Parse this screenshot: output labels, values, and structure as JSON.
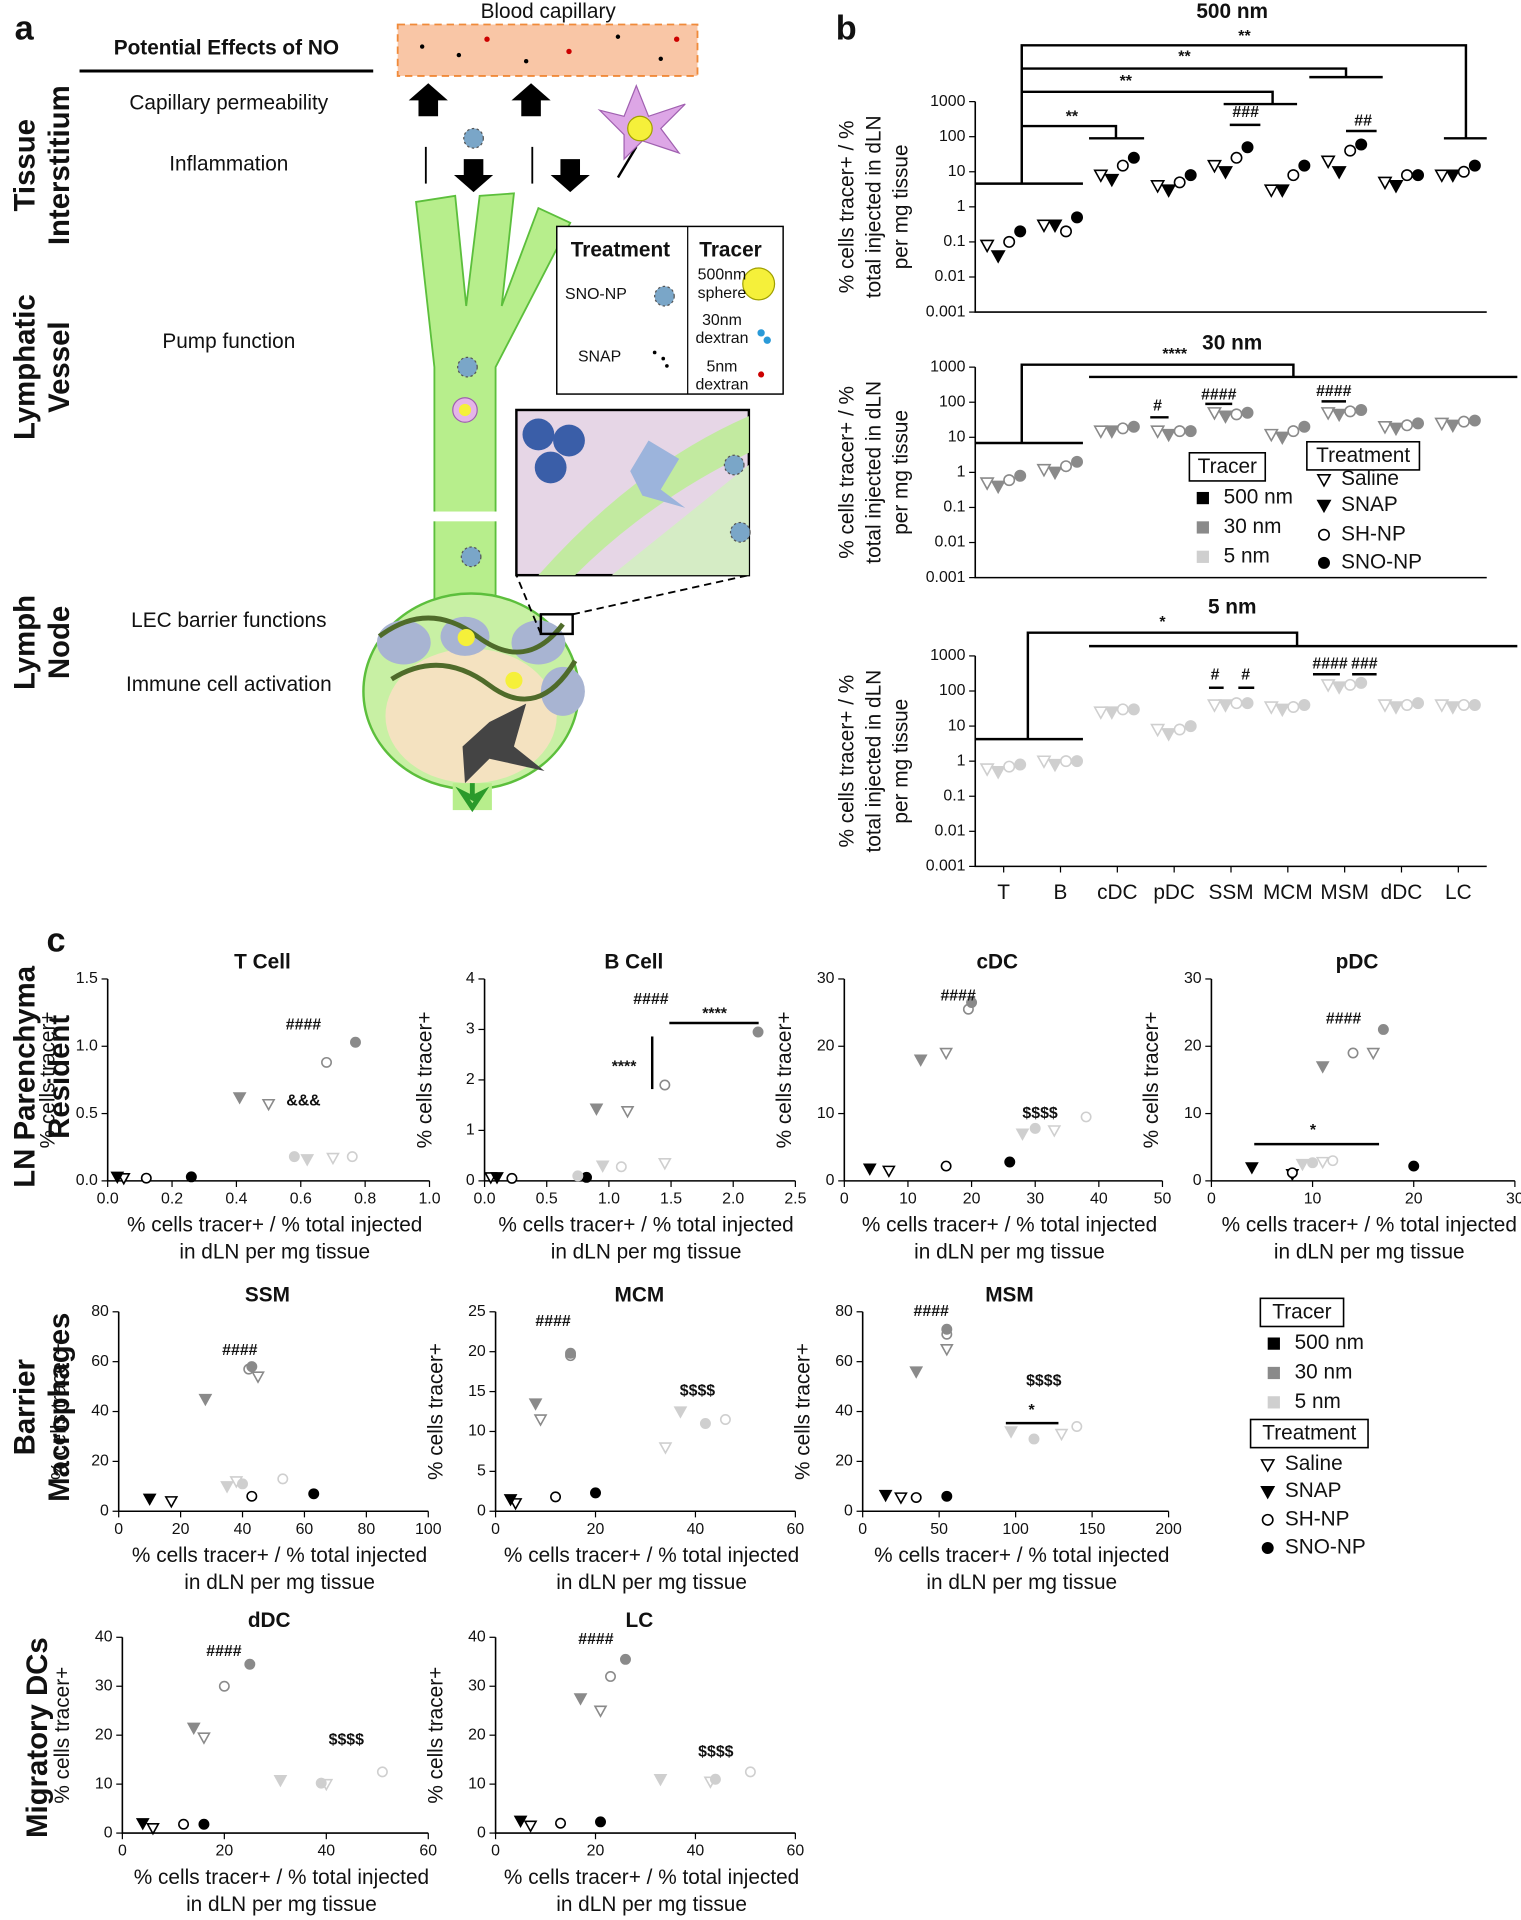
{
  "panel_labels": [
    "a",
    "b",
    "c"
  ],
  "diagram": {
    "title": "Potential Effects of NO",
    "capillary": "Blood capillary",
    "regions": [
      {
        "label": [
          "Tissue",
          "Interstitium"
        ],
        "effects": [
          "Capillary permeability",
          "Inflammation"
        ]
      },
      {
        "label": [
          "Lymphatic",
          "Vessel"
        ],
        "effects": [
          "Pump function"
        ]
      },
      {
        "label": [
          "Lymph",
          "Node"
        ],
        "effects": [
          "LEC barrier functions",
          "Immune cell activation"
        ]
      }
    ],
    "key": {
      "treatment": "Treatment",
      "tracer": "Tracer",
      "treatments": [
        "SNO-NP",
        "SNAP"
      ],
      "tracers": [
        [
          "500nm",
          "sphere"
        ],
        [
          "30nm",
          "dextran"
        ],
        [
          "5nm",
          "dextran"
        ]
      ]
    }
  },
  "legend": {
    "tracer_title": "Tracer",
    "tracers": [
      {
        "name": "500 nm",
        "color": "#000000"
      },
      {
        "name": "30 nm",
        "color": "#8a8a8a"
      },
      {
        "name": "5 nm",
        "color": "#cfcfcf"
      }
    ],
    "treatment_title": "Treatment",
    "treatments": [
      {
        "name": "Saline",
        "marker": "open-triangle"
      },
      {
        "name": "SNAP",
        "marker": "filled-triangle"
      },
      {
        "name": "SH-NP",
        "marker": "open-circle"
      },
      {
        "name": "SNO-NP",
        "marker": "filled-circle"
      }
    ]
  },
  "row_labels": [
    [
      "LN Parenchyma",
      "Resident"
    ],
    [
      "Barrier",
      "Macrophages"
    ],
    [
      "Migratory DCs"
    ]
  ],
  "chart_data": [
    {
      "type": "strip",
      "title": "500 nm",
      "ylabel": [
        "% cells tracer+ / %",
        "total injected in dLN",
        "per mg tissue"
      ],
      "log": true,
      "color": "#000000",
      "ylim": [
        0.001,
        1000
      ],
      "yticks": [
        0.001,
        0.01,
        0.1,
        1,
        10,
        100,
        1000
      ],
      "series": [
        {
          "values": [
            0.08,
            0.3,
            8,
            4,
            15,
            3,
            20,
            5,
            8
          ]
        },
        {
          "values": [
            0.04,
            0.3,
            6,
            3,
            10,
            3,
            10,
            4,
            8
          ]
        },
        {
          "values": [
            0.1,
            0.2,
            15,
            5,
            25,
            8,
            40,
            8,
            10
          ]
        },
        {
          "values": [
            0.2,
            0.5,
            25,
            8,
            50,
            15,
            60,
            8,
            15
          ]
        }
      ],
      "annotations": [
        "**",
        "**",
        "**",
        "**",
        "###",
        "##"
      ]
    },
    {
      "type": "strip",
      "title": "30 nm",
      "ylabel": [
        "% cells tracer+ / %",
        "total injected in dLN",
        "per mg tissue"
      ],
      "log": true,
      "color": "#8a8a8a",
      "ylim": [
        0.001,
        1000
      ],
      "yticks": [
        0.001,
        0.01,
        0.1,
        1,
        10,
        100,
        1000
      ],
      "series": [
        {
          "values": [
            0.5,
            1.2,
            15,
            15,
            50,
            12,
            50,
            20,
            25
          ]
        },
        {
          "values": [
            0.4,
            1,
            15,
            12,
            40,
            10,
            45,
            18,
            22
          ]
        },
        {
          "values": [
            0.6,
            1.5,
            18,
            15,
            45,
            15,
            55,
            22,
            28
          ]
        },
        {
          "values": [
            0.8,
            2,
            20,
            15,
            50,
            20,
            60,
            25,
            30
          ]
        }
      ],
      "annotations": [
        "****",
        "#",
        "####",
        "####"
      ]
    },
    {
      "type": "strip",
      "title": "5 nm",
      "ylabel": [
        "% cells tracer+ / %",
        "total injected in dLN",
        "per mg tissue"
      ],
      "log": true,
      "color": "#cfcfcf",
      "ylim": [
        0.001,
        1000
      ],
      "yticks": [
        0.001,
        0.01,
        0.1,
        1,
        10,
        100,
        1000
      ],
      "categories": [
        "T",
        "B",
        "cDC",
        "pDC",
        "SSM",
        "MCM",
        "MSM",
        "dDC",
        "LC"
      ],
      "series": [
        {
          "values": [
            0.6,
            1,
            25,
            8,
            40,
            35,
            150,
            40,
            40
          ]
        },
        {
          "values": [
            0.5,
            0.8,
            25,
            6,
            40,
            30,
            130,
            35,
            35
          ]
        },
        {
          "values": [
            0.7,
            1,
            30,
            8,
            45,
            35,
            150,
            40,
            40
          ]
        },
        {
          "values": [
            0.8,
            1,
            30,
            10,
            45,
            40,
            170,
            45,
            40
          ]
        }
      ],
      "annotations": [
        "*",
        "#",
        "#",
        "####",
        "###"
      ]
    },
    {
      "type": "scatter",
      "title": "T Cell",
      "ylabel": "% cells tracer+",
      "xlabel": [
        "% cells tracer+ / % total injected",
        "in dLN per mg tissue"
      ],
      "xlim": [
        0,
        1
      ],
      "xticks": [
        {
          "value": 0,
          "label": "0.0"
        },
        0.2,
        0.4,
        0.6,
        0.8,
        {
          "value": 1,
          "label": "1.0"
        }
      ],
      "ylim": [
        0,
        1.5
      ],
      "yticks": [
        {
          "value": 0,
          "label": "0.0"
        },
        0.5,
        {
          "value": 1,
          "label": "1.0"
        },
        1.5
      ],
      "series": [
        {
          "color": "#000000",
          "x": [
            0.05,
            0.03,
            0.12,
            0.26
          ],
          "y": [
            0.02,
            0.03,
            0.02,
            0.03
          ]
        },
        {
          "color": "#8a8a8a",
          "x": [
            0.5,
            0.41,
            0.68,
            0.77
          ],
          "y": [
            0.57,
            0.62,
            0.88,
            1.03
          ]
        },
        {
          "color": "#cfcfcf",
          "x": [
            0.7,
            0.62,
            0.76,
            0.58
          ],
          "y": [
            0.17,
            0.16,
            0.18,
            0.18
          ]
        }
      ],
      "annotations": [
        "####",
        "&&&"
      ]
    },
    {
      "type": "scatter",
      "title": "B Cell",
      "ylabel": "% cells tracer+",
      "xlabel": [
        "% cells tracer+ / % total injected",
        "in dLN per mg tissue"
      ],
      "xlim": [
        0,
        2.5
      ],
      "xticks": [
        {
          "value": 0,
          "label": "0.0"
        },
        0.5,
        {
          "value": 1,
          "label": "1.0"
        },
        1.5,
        {
          "value": 2,
          "label": "2.0"
        },
        2.5
      ],
      "ylim": [
        0,
        4
      ],
      "yticks": [
        0,
        1,
        2,
        3,
        4
      ],
      "series": [
        {
          "color": "#000000",
          "x": [
            0.05,
            0.1,
            0.22,
            0.82
          ],
          "y": [
            0.07,
            0.07,
            0.05,
            0.07
          ]
        },
        {
          "color": "#8a8a8a",
          "x": [
            1.15,
            0.9,
            1.45,
            2.2
          ],
          "y": [
            1.38,
            1.43,
            1.9,
            2.95
          ]
        },
        {
          "color": "#cfcfcf",
          "x": [
            1.45,
            0.95,
            1.1,
            0.75
          ],
          "y": [
            0.35,
            0.3,
            0.28,
            0.1
          ]
        }
      ],
      "annotations": [
        "####",
        "****",
        "****"
      ]
    },
    {
      "type": "scatter",
      "title": "cDC",
      "ylabel": "% cells tracer+",
      "xlabel": [
        "% cells tracer+ / % total injected",
        "in dLN per mg tissue"
      ],
      "xlim": [
        0,
        50
      ],
      "xticks": [
        0,
        10,
        20,
        30,
        40,
        50
      ],
      "ylim": [
        0,
        30
      ],
      "yticks": [
        0,
        10,
        20,
        30
      ],
      "series": [
        {
          "color": "#000000",
          "x": [
            7,
            4,
            16,
            26
          ],
          "y": [
            1.5,
            1.8,
            2.2,
            2.8
          ]
        },
        {
          "color": "#8a8a8a",
          "x": [
            16,
            12,
            19.5,
            20
          ],
          "y": [
            19,
            18,
            25.5,
            26.5
          ]
        },
        {
          "color": "#cfcfcf",
          "x": [
            33,
            28,
            38,
            30
          ],
          "y": [
            7.5,
            7,
            9.5,
            7.8
          ]
        }
      ],
      "annotations": [
        "####",
        "$$$$"
      ]
    },
    {
      "type": "scatter",
      "title": "pDC",
      "ylabel": "% cells tracer+",
      "xlabel": [
        "% cells tracer+ / % total injected",
        "in dLN per mg tissue"
      ],
      "xlim": [
        0,
        30
      ],
      "xticks": [
        0,
        10,
        20,
        30
      ],
      "ylim": [
        0,
        30
      ],
      "yticks": [
        0,
        10,
        20,
        30
      ],
      "series": [
        {
          "color": "#000000",
          "x": [
            8,
            4,
            8,
            20
          ],
          "y": [
            1,
            2,
            1.2,
            2.2
          ]
        },
        {
          "color": "#8a8a8a",
          "x": [
            16,
            11,
            14,
            17
          ],
          "y": [
            19,
            17,
            19,
            22.5
          ]
        },
        {
          "color": "#cfcfcf",
          "x": [
            11,
            9,
            12,
            10
          ],
          "y": [
            2.8,
            2.5,
            3,
            2.7
          ]
        }
      ],
      "annotations": [
        "####",
        "*"
      ]
    },
    {
      "type": "scatter",
      "title": "SSM",
      "ylabel": "% cells tracer+",
      "xlabel": [
        "% cells tracer+ / % total injected",
        "in dLN per mg tissue"
      ],
      "xlim": [
        0,
        100
      ],
      "xticks": [
        0,
        20,
        40,
        60,
        80,
        100
      ],
      "ylim": [
        0,
        80
      ],
      "yticks": [
        0,
        20,
        40,
        60,
        80
      ],
      "series": [
        {
          "color": "#000000",
          "x": [
            17,
            10,
            43,
            63
          ],
          "y": [
            4,
            5,
            6,
            7
          ]
        },
        {
          "color": "#8a8a8a",
          "x": [
            45,
            28,
            42,
            43
          ],
          "y": [
            54,
            45,
            57,
            58
          ]
        },
        {
          "color": "#cfcfcf",
          "x": [
            38,
            35,
            53,
            40
          ],
          "y": [
            12,
            10,
            13,
            11
          ]
        }
      ],
      "annotations": [
        "####"
      ]
    },
    {
      "type": "scatter",
      "title": "MCM",
      "ylabel": "% cells tracer+",
      "xlabel": [
        "% cells tracer+ / % total injected",
        "in dLN per mg tissue"
      ],
      "xlim": [
        0,
        60
      ],
      "xticks": [
        0,
        20,
        40,
        60
      ],
      "ylim": [
        0,
        25
      ],
      "yticks": [
        0,
        5,
        10,
        15,
        20,
        25
      ],
      "series": [
        {
          "color": "#000000",
          "x": [
            4,
            3,
            12,
            20
          ],
          "y": [
            1,
            1.5,
            1.8,
            2.3
          ]
        },
        {
          "color": "#8a8a8a",
          "x": [
            9,
            8,
            15,
            15
          ],
          "y": [
            11.5,
            13.5,
            19.5,
            19.8
          ]
        },
        {
          "color": "#cfcfcf",
          "x": [
            34,
            37,
            46,
            42
          ],
          "y": [
            8,
            12.5,
            11.5,
            11
          ]
        }
      ],
      "annotations": [
        "####",
        "$$$$"
      ]
    },
    {
      "type": "scatter",
      "title": "MSM",
      "ylabel": "% cells tracer+",
      "xlabel": [
        "% cells tracer+ / % total injected",
        "in dLN per mg tissue"
      ],
      "xlim": [
        0,
        200
      ],
      "xticks": [
        0,
        50,
        100,
        150,
        200
      ],
      "ylim": [
        0,
        80
      ],
      "yticks": [
        0,
        20,
        40,
        60,
        80
      ],
      "series": [
        {
          "color": "#000000",
          "x": [
            25,
            15,
            35,
            55
          ],
          "y": [
            5.5,
            6.5,
            5.5,
            6
          ]
        },
        {
          "color": "#8a8a8a",
          "x": [
            55,
            35,
            55,
            55
          ],
          "y": [
            65,
            56,
            71,
            73
          ]
        },
        {
          "color": "#cfcfcf",
          "x": [
            130,
            97,
            140,
            112
          ],
          "y": [
            31,
            32,
            34,
            29
          ]
        }
      ],
      "annotations": [
        "####",
        "$$$$",
        "*"
      ]
    },
    {
      "type": "scatter",
      "title": "dDC",
      "ylabel": "% cells tracer+",
      "xlabel": [
        "% cells tracer+ / % total injected",
        "in dLN per mg tissue"
      ],
      "xlim": [
        0,
        60
      ],
      "xticks": [
        0,
        20,
        40,
        60
      ],
      "ylim": [
        0,
        40
      ],
      "yticks": [
        0,
        10,
        20,
        30,
        40
      ],
      "series": [
        {
          "color": "#000000",
          "x": [
            6,
            4,
            12,
            16
          ],
          "y": [
            1,
            2,
            1.8,
            1.8
          ]
        },
        {
          "color": "#8a8a8a",
          "x": [
            16,
            14,
            20,
            25
          ],
          "y": [
            19.5,
            21.5,
            30,
            34.5
          ]
        },
        {
          "color": "#cfcfcf",
          "x": [
            40,
            31,
            51,
            39
          ],
          "y": [
            10,
            10.8,
            12.5,
            10.2
          ]
        }
      ],
      "annotations": [
        "####",
        "$$$$"
      ]
    },
    {
      "type": "scatter",
      "title": "LC",
      "ylabel": "% cells tracer+",
      "xlabel": [
        "% cells tracer+ / % total injected",
        "in dLN per mg tissue"
      ],
      "xlim": [
        0,
        60
      ],
      "xticks": [
        0,
        20,
        40,
        60
      ],
      "ylim": [
        0,
        40
      ],
      "yticks": [
        0,
        10,
        20,
        30,
        40
      ],
      "series": [
        {
          "color": "#000000",
          "x": [
            7,
            5,
            13,
            21
          ],
          "y": [
            1.5,
            2.5,
            2,
            2.3
          ]
        },
        {
          "color": "#8a8a8a",
          "x": [
            21,
            17,
            23,
            26
          ],
          "y": [
            25,
            27.5,
            32,
            35.5
          ]
        },
        {
          "color": "#cfcfcf",
          "x": [
            43,
            33,
            51,
            44
          ],
          "y": [
            10.5,
            11,
            12.5,
            11
          ]
        }
      ],
      "annotations": [
        "####",
        "$$$$"
      ]
    }
  ]
}
